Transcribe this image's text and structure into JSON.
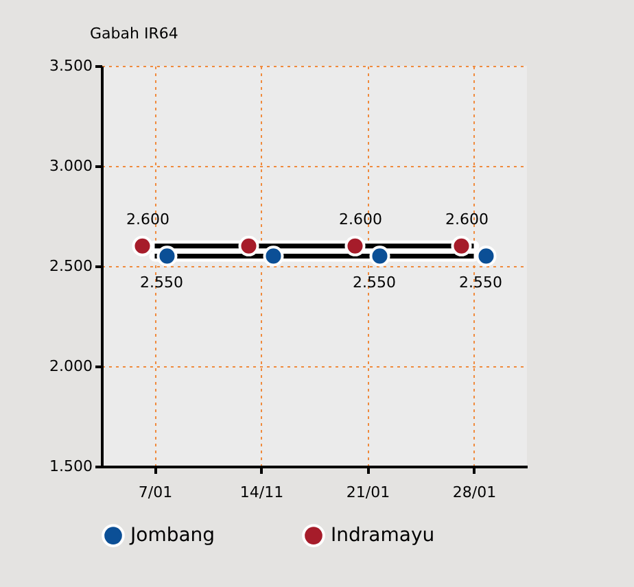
{
  "chart_data": {
    "type": "line",
    "title": "Gabah IR64",
    "categories": [
      "7/01",
      "14/11",
      "21/01",
      "28/01"
    ],
    "series": [
      {
        "name": "Jombang",
        "color": "#0b4f96",
        "values": [
          2550,
          2550,
          2550,
          2550
        ],
        "value_labels": [
          "2.550",
          null,
          "2.550",
          "2.550"
        ]
      },
      {
        "name": "Indramayu",
        "color": "#a61c2a",
        "values": [
          2600,
          2600,
          2600,
          2600
        ],
        "value_labels": [
          "2.600",
          null,
          "2.600",
          "2.600"
        ]
      }
    ],
    "ylim": [
      1500,
      3500
    ],
    "yticks": [
      {
        "value": 1500,
        "label": "1.500"
      },
      {
        "value": 2000,
        "label": "2.000"
      },
      {
        "value": 2500,
        "label": "2.500"
      },
      {
        "value": 3000,
        "label": "3.000"
      },
      {
        "value": 3500,
        "label": "3.500"
      }
    ],
    "grid": true,
    "legend": "bottom",
    "marker": "circle",
    "line_style": "solid"
  }
}
